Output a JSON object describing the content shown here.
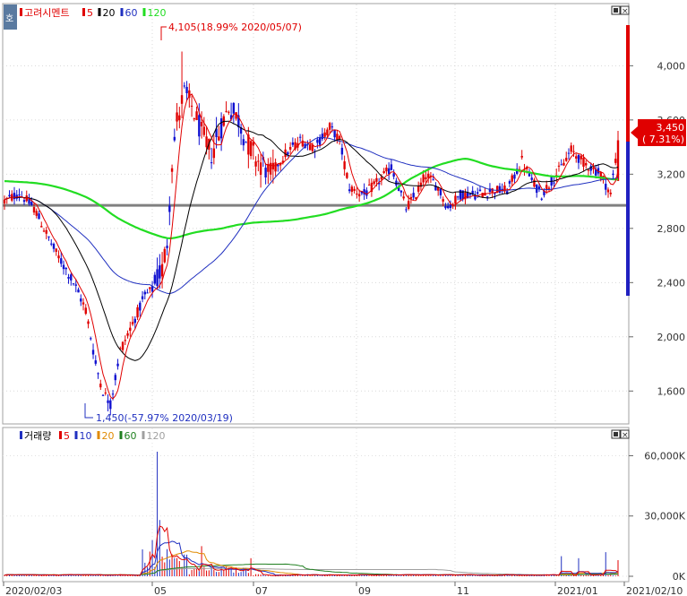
{
  "chart_data": {
    "type": "candlestick",
    "title": "고려시멘트",
    "price_legend": [
      {
        "label": "5",
        "color": "#e00000"
      },
      {
        "label": "20",
        "color": "#000000"
      },
      {
        "label": "60",
        "color": "#2030c0"
      },
      {
        "label": "120",
        "color": "#22dd22"
      }
    ],
    "volume_title": "거래량",
    "volume_legend": [
      {
        "label": "5",
        "color": "#e00000"
      },
      {
        "label": "10",
        "color": "#2030c0"
      },
      {
        "label": "20",
        "color": "#e08a00"
      },
      {
        "label": "60",
        "color": "#208020"
      },
      {
        "label": "120",
        "color": "#a0a0a0"
      }
    ],
    "price_ticks": [
      "4,000",
      "3,600",
      "3,200",
      "2,800",
      "2,400",
      "2,000",
      "1,600"
    ],
    "price_tick_values": [
      4000,
      3600,
      3200,
      2800,
      2400,
      2000,
      1600
    ],
    "price_range": [
      1430,
      4300
    ],
    "volume_ticks": [
      "60,000K",
      "30,000K",
      "0K"
    ],
    "volume_tick_values": [
      60000,
      30000,
      0
    ],
    "volume_range": [
      0,
      66000
    ],
    "x_labels": [
      "2020/02/03",
      "05",
      "07",
      "09",
      "11",
      "2021/01",
      "2021/02/10"
    ],
    "max_annotation": "4,105(18.99% 2020/05/07)",
    "min_annotation": "1,450(-57.97% 2020/03/19)",
    "current_price": "3,450",
    "current_change": "( 7.31%)",
    "reference_price": 2970,
    "collapse_icon": "⇱"
  }
}
